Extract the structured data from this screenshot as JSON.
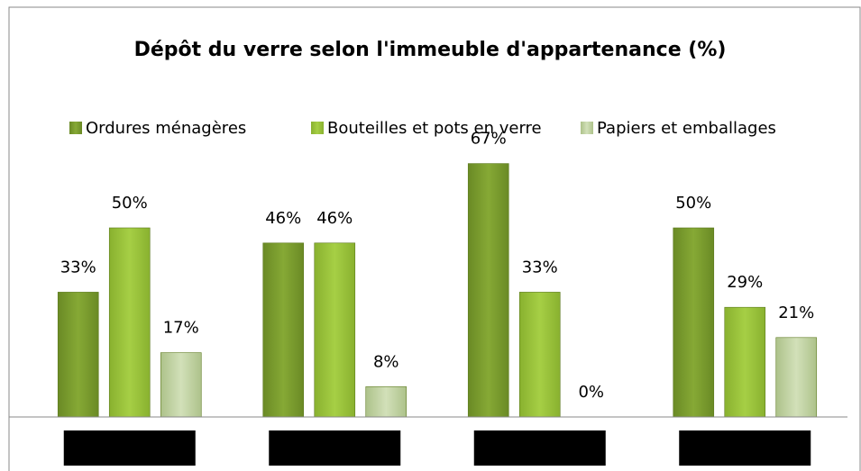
{
  "chart_data": {
    "type": "bar",
    "title": "Dépôt du verre selon l'immeuble d'appartenance (%)",
    "categories": [
      null,
      null,
      null,
      null
    ],
    "series": [
      {
        "name": "Ordures ménagères",
        "color": "#7d9e2f",
        "values": [
          33,
          46,
          67,
          50
        ],
        "value_labels": [
          "33%",
          "46%",
          "67%",
          "50%"
        ]
      },
      {
        "name": "Bouteilles et pots en verre",
        "color": "#9cc53b",
        "values": [
          50,
          46,
          33,
          29
        ],
        "value_labels": [
          "50%",
          "46%",
          "33%",
          "29%"
        ]
      },
      {
        "name": "Papiers et emballages",
        "color": "#c3d5a4",
        "values": [
          17,
          8,
          0,
          21
        ],
        "value_labels": [
          "17%",
          "8%",
          "0%",
          "21%"
        ]
      }
    ],
    "ylim": [
      0,
      100
    ],
    "legend": "top"
  }
}
